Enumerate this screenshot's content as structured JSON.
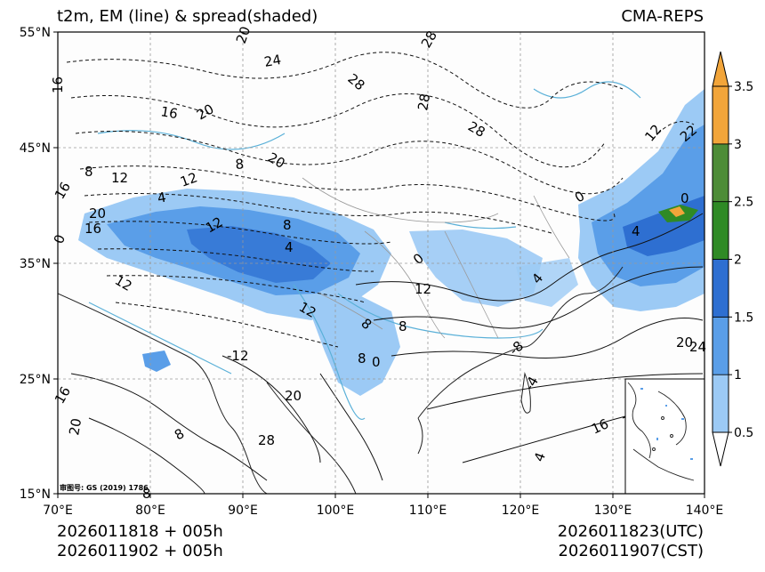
{
  "header": {
    "title": "t2m, EM (line) & spread(shaded)",
    "source": "CMA-REPS"
  },
  "footer": {
    "init_utc": "2026011818  +  005h",
    "init_cst": "2026011902  +  005h",
    "valid_utc": "2026011823(UTC)",
    "valid_cst": "2026011907(CST)"
  },
  "map": {
    "copyright": "审图号: GS (2019) 1786",
    "lat_ticks": [
      "55°N",
      "45°N",
      "35°N",
      "25°N",
      "15°N"
    ],
    "lon_ticks": [
      "70°E",
      "80°E",
      "90°E",
      "100°E",
      "110°E",
      "120°E",
      "130°E",
      "140°E"
    ],
    "extent": {
      "lon_min": 70,
      "lon_max": 140,
      "lat_min": 15,
      "lat_max": 55
    },
    "contour_labels": [
      "16",
      "20",
      "24",
      "28",
      "16",
      "20",
      "28",
      "28",
      "28",
      "16",
      "20",
      "12",
      "20",
      "8",
      "12",
      "8",
      "4",
      "0",
      "16",
      "12",
      "8",
      "12",
      "4",
      "8",
      "12",
      "0",
      "12",
      "8",
      "4",
      "0",
      "4",
      "8",
      "0",
      "-4",
      "-8",
      "-12",
      "4",
      "0",
      "12",
      "20",
      "20",
      "16",
      "8",
      "16",
      "22",
      "24",
      "28",
      "20",
      "8"
    ]
  },
  "colorbar": {
    "ticks": [
      "0.5",
      "1",
      "1.5",
      "2",
      "2.5",
      "3",
      "3.5"
    ],
    "colors": [
      "#9ccaf5",
      "#5a9ee8",
      "#2e6fd1",
      "#2f8a25",
      "#4d8c37",
      "#f2a53a"
    ],
    "under_color": "#ffffff",
    "over_color": "#f2a53a"
  }
}
